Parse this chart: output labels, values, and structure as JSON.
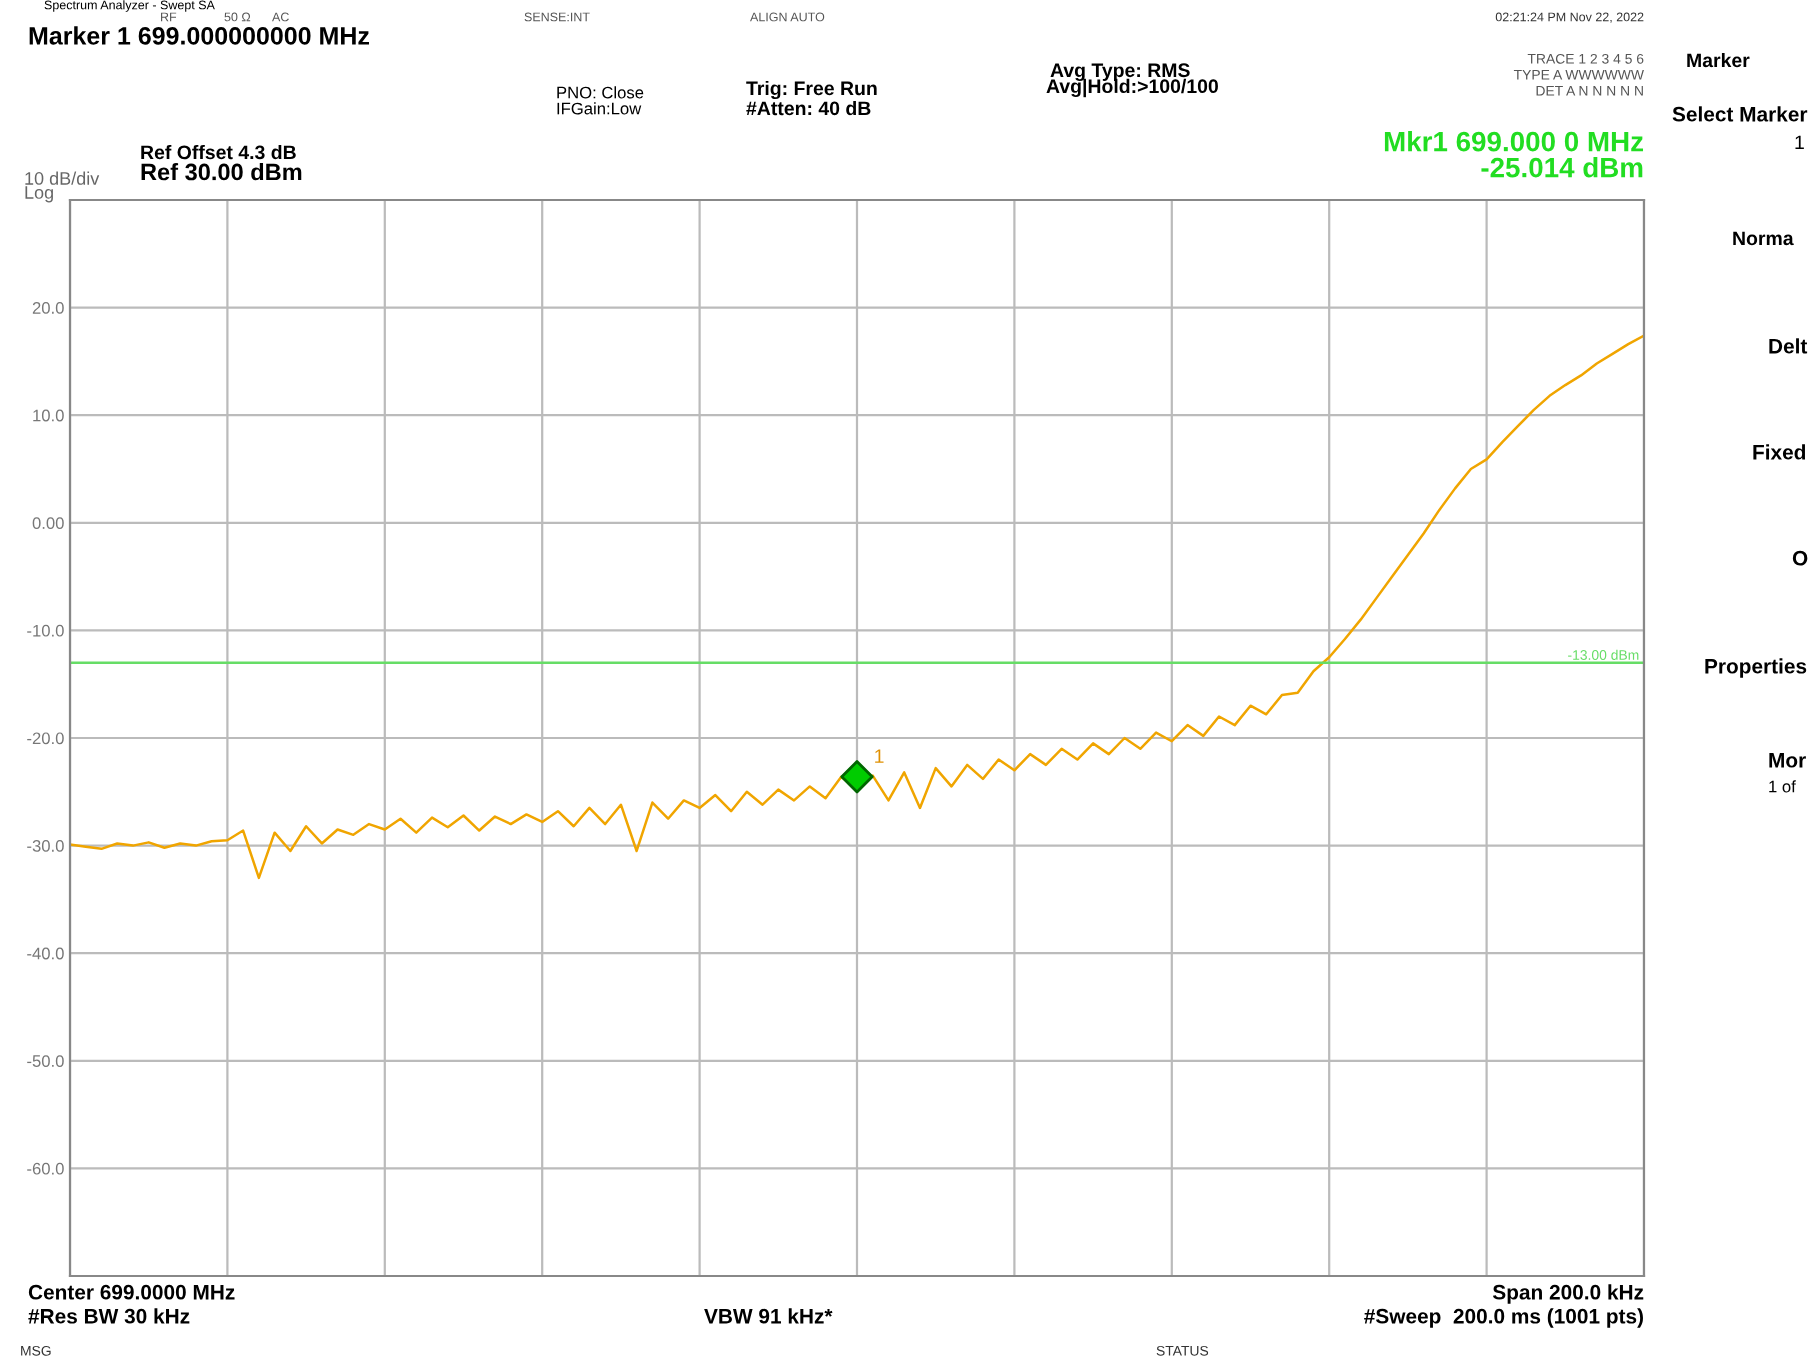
{
  "chart_data": {
    "type": "line",
    "title": "Marker 1 699.000000000 MHz",
    "categories": [
      null,
      null,
      null,
      null,
      null,
      null,
      null,
      null,
      null,
      null,
      null,
      null,
      null,
      null,
      null,
      null,
      null,
      null,
      null,
      null,
      null,
      null,
      null,
      null,
      null,
      null,
      null,
      null,
      null,
      null,
      null,
      null,
      null,
      null,
      null,
      null,
      null,
      null,
      null,
      null,
      null,
      null,
      null,
      null,
      null,
      null,
      null,
      null,
      null,
      null,
      null,
      null,
      null,
      null,
      null,
      null,
      null,
      null,
      null,
      null,
      null,
      null,
      null,
      null,
      null,
      null,
      null,
      null,
      null,
      null,
      null,
      null,
      null,
      null,
      null,
      null,
      null,
      null,
      null,
      null,
      null,
      null,
      null,
      null,
      null,
      null,
      null,
      null,
      null,
      null,
      null,
      null,
      null,
      null,
      null,
      null,
      null,
      null,
      null,
      null,
      null
    ],
    "series": [
      {
        "color": "#f0a500",
        "values": [
          -29.9,
          -30.1,
          -30.3,
          -29.8,
          -30.0,
          -29.7,
          -30.2,
          -29.8,
          -30.0,
          -29.6,
          -29.5,
          -28.6,
          -33.0,
          -28.8,
          -30.5,
          -28.2,
          -29.8,
          -28.5,
          -29.0,
          -28.0,
          -28.5,
          -27.5,
          -28.8,
          -27.4,
          -28.3,
          -27.2,
          -28.6,
          -27.3,
          -28.0,
          -27.1,
          -27.8,
          -26.8,
          -28.2,
          -26.5,
          -28.0,
          -26.2,
          -30.5,
          -26.0,
          -27.5,
          -25.8,
          -26.5,
          -25.3,
          -26.8,
          -25.0,
          -26.2,
          -24.8,
          -25.8,
          -24.5,
          -25.6,
          -23.6,
          -24.8,
          -23.5,
          -25.8,
          -23.2,
          -26.5,
          -22.8,
          -24.5,
          -22.5,
          -23.8,
          -22.0,
          -23.0,
          -21.5,
          -22.5,
          -21.0,
          -22.0,
          -20.5,
          -21.5,
          -20.0,
          -21.0,
          -19.5,
          -20.3,
          -18.8,
          -19.8,
          -18.0,
          -18.8,
          -17.0,
          -17.8,
          -16.0,
          -15.8,
          -13.8,
          -12.5,
          -10.8,
          -9.0,
          -7.0,
          -5.0,
          -3.0,
          -1.0,
          1.2,
          3.2,
          5.0,
          5.9,
          7.5,
          9.0,
          10.5,
          11.8,
          12.8,
          13.7,
          14.8,
          15.7,
          16.6,
          17.4
        ]
      },
      {
        "name": "1",
        "type": "scatter",
        "marker": "diamond",
        "color": "#00cc00",
        "values": [
          null,
          null,
          null,
          null,
          null,
          null,
          null,
          null,
          null,
          null,
          null,
          null,
          null,
          null,
          null,
          null,
          null,
          null,
          null,
          null,
          null,
          null,
          null,
          null,
          null,
          null,
          null,
          null,
          null,
          null,
          null,
          null,
          null,
          null,
          null,
          null,
          null,
          null,
          null,
          null,
          null,
          null,
          null,
          null,
          null,
          null,
          null,
          null,
          null,
          null,
          -23.6,
          null,
          null,
          null,
          null,
          null,
          null,
          null,
          null,
          null,
          null,
          null,
          null,
          null,
          null,
          null,
          null,
          null,
          null,
          null,
          null,
          null,
          null,
          null,
          null,
          null,
          null,
          null,
          null,
          null,
          null,
          null,
          null,
          null,
          null,
          null,
          null,
          null,
          null,
          null,
          null,
          null,
          null,
          null,
          null,
          null,
          null,
          null,
          null,
          null,
          null
        ]
      }
    ],
    "ylim": [
      -70,
      30
    ],
    "yticks": [
      {
        "value": -70,
        "label": null
      },
      {
        "value": -60,
        "label": "-60.0"
      },
      {
        "value": -50,
        "label": "-50.0"
      },
      {
        "value": -40,
        "label": "-40.0"
      },
      {
        "value": -30,
        "label": "-30.0"
      },
      {
        "value": -20,
        "label": "-20.0"
      },
      {
        "value": -10,
        "label": "-10.0"
      },
      {
        "value": 0,
        "label": "0.00"
      },
      {
        "value": 10,
        "label": "10.0"
      },
      {
        "value": 20,
        "label": "20.0"
      },
      {
        "value": 30,
        "label": null
      }
    ],
    "tick_labels": "y",
    "grid": true,
    "line_style": "solid",
    "ref_lines": [
      {
        "axis": "y",
        "value": -13,
        "label": "-13.00 dBm",
        "color": "#66dd66"
      }
    ],
    "annotations": [
      "Spectrum Analyzer - Swept SA",
      "RF",
      "50 Ω",
      "AC",
      "SENSE:INT",
      "ALIGN AUTO",
      "02:21:24 PM Nov 22, 2022",
      "PNO: Close",
      "IFGain:Low",
      "Trig: Free Run",
      "#Atten: 40 dB",
      "Avg Type: RMS",
      "Avg|Hold:>100/100",
      "TRACE 1 2 3 4 5 6",
      "TYPE A WWWWWW",
      "DET A N N N N N",
      "Mkr1 699.000 0 MHz",
      "-25.014 dBm",
      "Ref Offset 4.3 dB",
      "Ref 30.00 dBm",
      "10 dB/div",
      "Log",
      "Center 699.0000 MHz",
      "#Res BW 30 kHz",
      "VBW 91 kHz*",
      "Span 200.0 kHz",
      "#Sweep  200.0 ms (1001 pts)",
      "MSG",
      "STATUS",
      "Marker",
      "Select Marker",
      "1",
      "Norma",
      "Delt",
      "Fixed",
      "O",
      "Properties",
      "Mor",
      "1 of"
    ]
  }
}
